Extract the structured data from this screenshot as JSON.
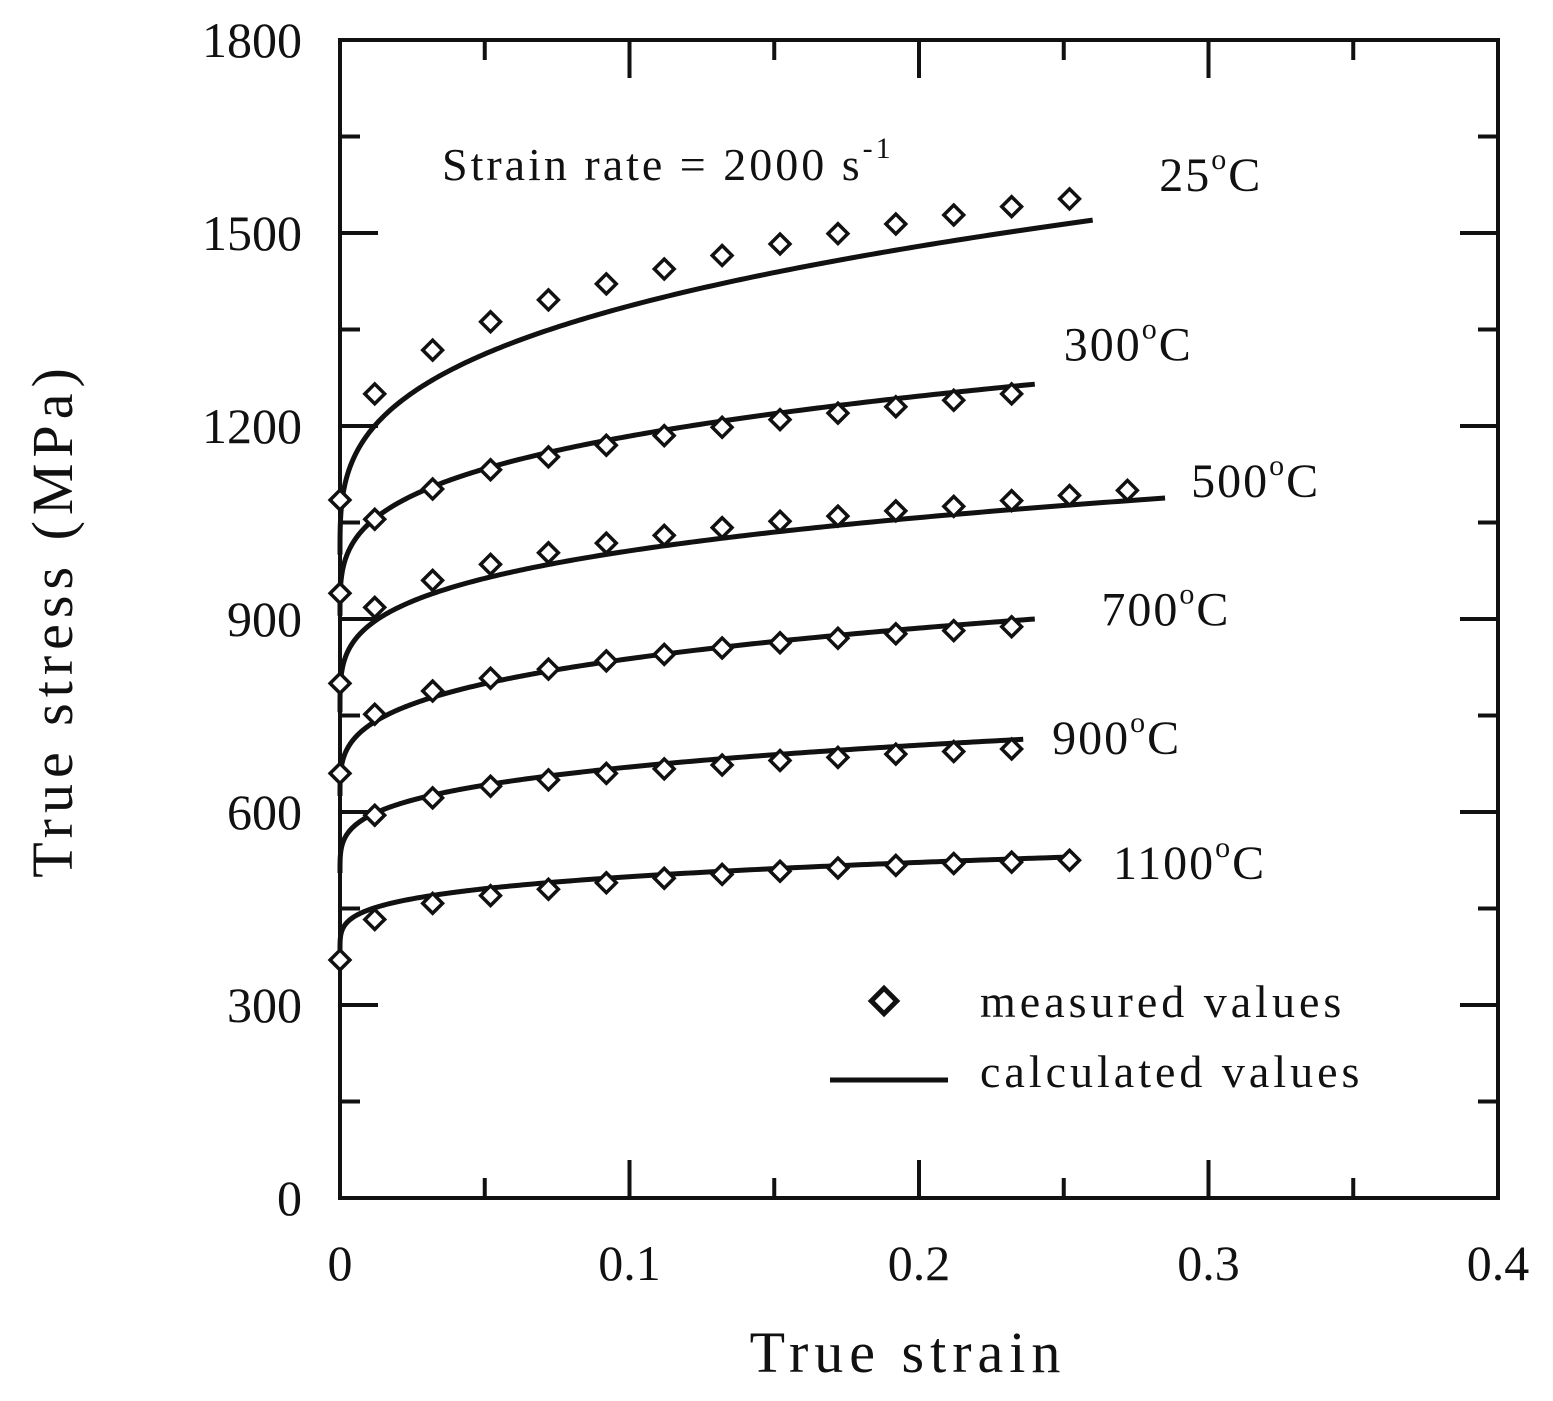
{
  "chart_data": {
    "type": "line",
    "xlabel": "True strain",
    "ylabel": "True stress (MPa)",
    "xlim": [
      0,
      0.4
    ],
    "ylim": [
      0,
      1800
    ],
    "x_ticks": [
      0,
      0.1,
      0.2,
      0.3,
      0.4
    ],
    "x_tick_labels": [
      "0",
      "0.1",
      "0.2",
      "0.3",
      "0.4"
    ],
    "y_ticks": [
      0,
      300,
      600,
      900,
      1200,
      1500,
      1800
    ],
    "y_tick_labels": [
      "0",
      "300",
      "600",
      "900",
      "1200",
      "1500",
      "1800"
    ],
    "annotation": {
      "text": "Strain rate = 2000 s",
      "superscript": "-1"
    },
    "legend": {
      "placement": "bottom-right",
      "measured": "measured values",
      "calculated": "calculated values"
    },
    "series": [
      {
        "name": "25",
        "unit_sup": "o",
        "unit": "C",
        "label_at": [
          0.283,
          1565
        ],
        "measured": {
          "x": [
            0.012,
            0.032,
            0.052,
            0.072,
            0.092,
            0.112,
            0.132,
            0.152,
            0.172,
            0.192,
            0.212,
            0.232,
            0.252
          ],
          "y": [
            1250,
            1318,
            1362,
            1396,
            1421,
            1444,
            1465,
            1483,
            1499,
            1514,
            1528,
            1541,
            1553
          ]
        },
        "calculated": {
          "sigma0": 1000,
          "x_end": 0.26,
          "y_end": 1520,
          "n": 0.31
        }
      },
      {
        "name": "300",
        "unit_sup": "o",
        "unit": "C",
        "label_at": [
          0.25,
          1302
        ],
        "measured": {
          "x": [
            0,
            0.012,
            0.032,
            0.052,
            0.072,
            0.092,
            0.112,
            0.132,
            0.152,
            0.172,
            0.192,
            0.212,
            0.232
          ],
          "y": [
            1085,
            1055,
            1102,
            1132,
            1152,
            1170,
            1185,
            1198,
            1210,
            1220,
            1230,
            1240,
            1250
          ]
        },
        "calculated": {
          "sigma0": 905,
          "x_end": 0.24,
          "y_end": 1265,
          "n": 0.29
        }
      },
      {
        "name": "500",
        "unit_sup": "o",
        "unit": "C",
        "label_at": [
          0.294,
          1090
        ],
        "measured": {
          "x": [
            0,
            0.012,
            0.032,
            0.052,
            0.072,
            0.092,
            0.112,
            0.132,
            0.152,
            0.172,
            0.192,
            0.212,
            0.232,
            0.252,
            0.272
          ],
          "y": [
            940,
            918,
            960,
            985,
            1003,
            1018,
            1030,
            1042,
            1052,
            1060,
            1068,
            1075,
            1084,
            1092,
            1100
          ]
        },
        "calculated": {
          "sigma0": 755,
          "x_end": 0.285,
          "y_end": 1088,
          "n": 0.27
        }
      },
      {
        "name": "700",
        "unit_sup": "o",
        "unit": "C",
        "label_at": [
          0.263,
          890
        ],
        "measured": {
          "x": [
            0,
            0.012,
            0.032,
            0.052,
            0.072,
            0.092,
            0.112,
            0.132,
            0.152,
            0.172,
            0.192,
            0.212,
            0.232
          ],
          "y": [
            800,
            752,
            788,
            808,
            822,
            835,
            845,
            855,
            863,
            870,
            877,
            882,
            888
          ]
        },
        "calculated": {
          "sigma0": 625,
          "x_end": 0.24,
          "y_end": 900,
          "n": 0.29
        }
      },
      {
        "name": "900",
        "unit_sup": "o",
        "unit": "C",
        "label_at": [
          0.246,
          690
        ],
        "measured": {
          "x": [
            0,
            0.012,
            0.032,
            0.052,
            0.072,
            0.092,
            0.112,
            0.132,
            0.152,
            0.172,
            0.192,
            0.212,
            0.232
          ],
          "y": [
            660,
            595,
            622,
            640,
            650,
            660,
            667,
            673,
            680,
            685,
            690,
            694,
            698
          ]
        },
        "calculated": {
          "sigma0": 505,
          "x_end": 0.236,
          "y_end": 713,
          "n": 0.27
        }
      },
      {
        "name": "1100",
        "unit_sup": "o",
        "unit": "C",
        "label_at": [
          0.267,
          496
        ],
        "measured": {
          "x": [
            0,
            0.012,
            0.032,
            0.052,
            0.072,
            0.092,
            0.112,
            0.132,
            0.152,
            0.172,
            0.192,
            0.212,
            0.232,
            0.252
          ],
          "y": [
            370,
            433,
            458,
            470,
            480,
            490,
            497,
            503,
            508,
            513,
            517,
            520,
            522,
            525
          ]
        },
        "calculated": {
          "sigma0": 382,
          "x_end": 0.252,
          "y_end": 530,
          "n": 0.25
        }
      }
    ]
  }
}
